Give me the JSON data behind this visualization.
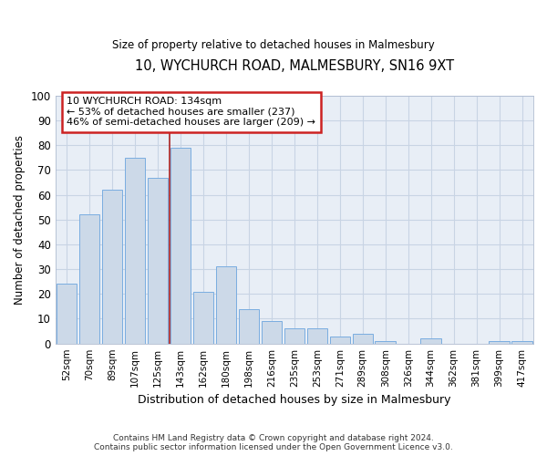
{
  "title": "10, WYCHURCH ROAD, MALMESBURY, SN16 9XT",
  "subtitle": "Size of property relative to detached houses in Malmesbury",
  "xlabel": "Distribution of detached houses by size in Malmesbury",
  "ylabel": "Number of detached properties",
  "footer_line1": "Contains HM Land Registry data © Crown copyright and database right 2024.",
  "footer_line2": "Contains public sector information licensed under the Open Government Licence v3.0.",
  "categories": [
    "52sqm",
    "70sqm",
    "89sqm",
    "107sqm",
    "125sqm",
    "143sqm",
    "162sqm",
    "180sqm",
    "198sqm",
    "216sqm",
    "235sqm",
    "253sqm",
    "271sqm",
    "289sqm",
    "308sqm",
    "326sqm",
    "344sqm",
    "362sqm",
    "381sqm",
    "399sqm",
    "417sqm"
  ],
  "values": [
    24,
    52,
    62,
    75,
    67,
    79,
    21,
    31,
    14,
    9,
    6,
    6,
    3,
    4,
    1,
    0,
    2,
    0,
    0,
    1,
    1
  ],
  "bar_color": "#ccd9e8",
  "bar_edgecolor": "#7aade0",
  "vline_color": "#aa2222",
  "vline_index": 4.5,
  "annotation_text_line1": "10 WYCHURCH ROAD: 134sqm",
  "annotation_text_line2": "← 53% of detached houses are smaller (237)",
  "annotation_text_line3": "46% of semi-detached houses are larger (209) →",
  "annotation_box_edgecolor": "#cc2222",
  "ylim": [
    0,
    100
  ],
  "yticks": [
    0,
    10,
    20,
    30,
    40,
    50,
    60,
    70,
    80,
    90,
    100
  ],
  "grid_color": "#c8d4e4",
  "background_color": "#e8eef6"
}
